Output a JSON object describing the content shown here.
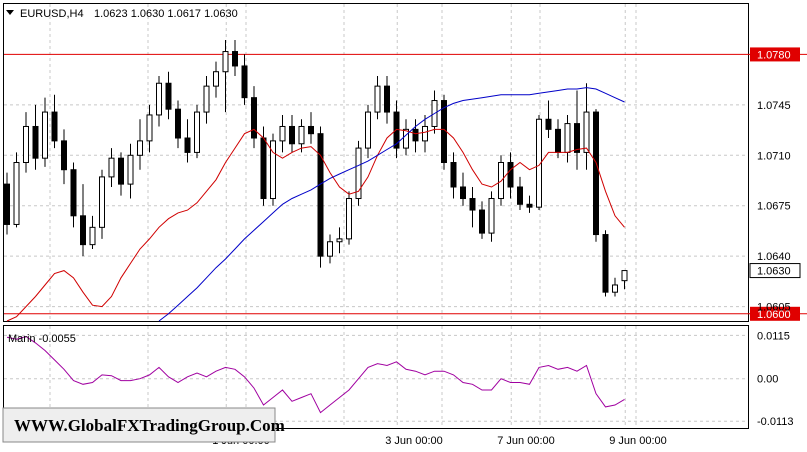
{
  "header": {
    "menu_arrow_icon": "triangle-down-icon",
    "symbol": "EURUSD,H4",
    "ohlc": "1.0623 1.0630 1.0617 1.0630"
  },
  "colors": {
    "up_candle": "#ffffff",
    "down_candle": "#000000",
    "grid": "#c8c8c8",
    "level_line": "#e00000",
    "ma_fast": "#d00000",
    "ma_slow": "#0000c8",
    "oscillator": "#a000a0"
  },
  "watermark": "WWW.GlobalFXTradingGroup.Com",
  "chart_data": [
    {
      "type": "candlestick",
      "symbol": "EURUSD",
      "timeframe": "H4",
      "grid": true,
      "ylim": [
        1.0595,
        1.0815
      ],
      "y_ticks": [
        "1.0745",
        "1.0710",
        "1.0675",
        "1.0640",
        "1.0605"
      ],
      "x_ticks": [
        "1 Jun 00:00",
        "3 Jun 00:00",
        "7 Jun 00:00",
        "9 Jun 00:00"
      ],
      "levels": [
        {
          "value": 1.078,
          "label": "1.0780"
        },
        {
          "value": 1.06,
          "label": "1.0600"
        }
      ],
      "current_price": "1.0630",
      "candles": [
        [
          1.069,
          1.0698,
          1.0655,
          1.0662
        ],
        [
          1.0662,
          1.0712,
          1.066,
          1.0705
        ],
        [
          1.0705,
          1.074,
          1.0698,
          1.073
        ],
        [
          1.073,
          1.0745,
          1.07,
          1.0708
        ],
        [
          1.0708,
          1.075,
          1.0702,
          1.074
        ],
        [
          1.074,
          1.0752,
          1.0715,
          1.072
        ],
        [
          1.072,
          1.0728,
          1.069,
          1.07
        ],
        [
          1.07,
          1.0705,
          1.066,
          1.0668
        ],
        [
          1.0668,
          1.069,
          1.064,
          1.0648
        ],
        [
          1.0648,
          1.0668,
          1.0645,
          1.066
        ],
        [
          1.066,
          1.07,
          1.0652,
          1.0695
        ],
        [
          1.0695,
          1.0715,
          1.0688,
          1.0708
        ],
        [
          1.0708,
          1.0712,
          1.0682,
          1.069
        ],
        [
          1.069,
          1.0718,
          1.068,
          1.071
        ],
        [
          1.071,
          1.0735,
          1.07,
          1.072
        ],
        [
          1.072,
          1.0745,
          1.0712,
          1.0738
        ],
        [
          1.0738,
          1.0765,
          1.073,
          1.076
        ],
        [
          1.076,
          1.0768,
          1.0735,
          1.0742
        ],
        [
          1.0742,
          1.0748,
          1.0715,
          1.0722
        ],
        [
          1.0722,
          1.0735,
          1.0705,
          1.0712
        ],
        [
          1.0712,
          1.0745,
          1.0708,
          1.074
        ],
        [
          1.074,
          1.0765,
          1.0732,
          1.0758
        ],
        [
          1.0758,
          1.0775,
          1.075,
          1.0768
        ],
        [
          1.0768,
          1.079,
          1.074,
          1.0782
        ],
        [
          1.0782,
          1.079,
          1.0765,
          1.0772
        ],
        [
          1.0772,
          1.078,
          1.0745,
          1.075
        ],
        [
          1.075,
          1.0758,
          1.0715,
          1.0722
        ],
        [
          1.0722,
          1.073,
          1.0675,
          1.068
        ],
        [
          1.068,
          1.0725,
          1.0675,
          1.072
        ],
        [
          1.072,
          1.0738,
          1.0712,
          1.073
        ],
        [
          1.073,
          1.0738,
          1.0712,
          1.0718
        ],
        [
          1.0718,
          1.0735,
          1.0712,
          1.073
        ],
        [
          1.073,
          1.074,
          1.0718,
          1.0725
        ],
        [
          1.0725,
          1.073,
          1.0632,
          1.064
        ],
        [
          1.064,
          1.0655,
          1.0635,
          1.065
        ],
        [
          1.065,
          1.066,
          1.0642,
          1.0652
        ],
        [
          1.0652,
          1.0685,
          1.0648,
          1.068
        ],
        [
          1.068,
          1.072,
          1.0675,
          1.0715
        ],
        [
          1.0715,
          1.0745,
          1.0708,
          1.074
        ],
        [
          1.074,
          1.0765,
          1.0735,
          1.0758
        ],
        [
          1.0758,
          1.0765,
          1.0732,
          1.074
        ],
        [
          1.074,
          1.0748,
          1.0708,
          1.0715
        ],
        [
          1.0715,
          1.0735,
          1.071,
          1.0728
        ],
        [
          1.0728,
          1.0735,
          1.0712,
          1.072
        ],
        [
          1.072,
          1.0738,
          1.0712,
          1.073
        ],
        [
          1.073,
          1.0755,
          1.0725,
          1.0748
        ],
        [
          1.0748,
          1.0752,
          1.07,
          1.0705
        ],
        [
          1.0705,
          1.0712,
          1.068,
          1.0688
        ],
        [
          1.0688,
          1.0698,
          1.0675,
          1.068
        ],
        [
          1.068,
          1.0688,
          1.066,
          1.0672
        ],
        [
          1.0672,
          1.0678,
          1.0652,
          1.0656
        ],
        [
          1.0656,
          1.0685,
          1.065,
          1.068
        ],
        [
          1.068,
          1.071,
          1.0675,
          1.0705
        ],
        [
          1.0705,
          1.0712,
          1.068,
          1.0688
        ],
        [
          1.0688,
          1.0695,
          1.0672,
          1.0676
        ],
        [
          1.0676,
          1.0682,
          1.067,
          1.0674
        ],
        [
          1.0674,
          1.0738,
          1.0672,
          1.0735
        ],
        [
          1.0735,
          1.0748,
          1.0722,
          1.0728
        ],
        [
          1.0728,
          1.0735,
          1.0708,
          1.0712
        ],
        [
          1.0712,
          1.0738,
          1.0705,
          1.0732
        ],
        [
          1.0732,
          1.0755,
          1.07,
          1.0712
        ],
        [
          1.0712,
          1.076,
          1.07,
          1.074
        ],
        [
          1.074,
          1.0742,
          1.065,
          1.0655
        ],
        [
          1.0655,
          1.0658,
          1.0612,
          1.0615
        ],
        [
          1.0615,
          1.0625,
          1.0612,
          1.062
        ],
        [
          1.0623,
          1.063,
          1.0617,
          1.063
        ]
      ],
      "series": [
        {
          "type": "line",
          "values": [
            1.0595,
            1.0598,
            1.0605,
            1.0612,
            1.062,
            1.0628,
            1.063,
            1.0625,
            1.0615,
            1.0606,
            1.0605,
            1.0612,
            1.0625,
            1.0635,
            1.0645,
            1.0652,
            1.066,
            1.0666,
            1.067,
            1.0672,
            1.0677,
            1.0685,
            1.0693,
            1.0705,
            1.0715,
            1.0725,
            1.0728,
            1.0722,
            1.0712,
            1.0708,
            1.0712,
            1.0715,
            1.0716,
            1.071,
            1.0698,
            1.0688,
            1.0683,
            1.0685,
            1.0695,
            1.071,
            1.0722,
            1.0728,
            1.0727,
            1.0725,
            1.0726,
            1.0728,
            1.0728,
            1.0722,
            1.0712,
            1.07,
            1.069,
            1.0688,
            1.0692,
            1.07,
            1.0705,
            1.07,
            1.0703,
            1.0712,
            1.0712,
            1.0712,
            1.0714,
            1.0715,
            1.0705,
            1.0685,
            1.0668,
            1.066
          ]
        },
        {
          "type": "line",
          "values": [
            null,
            null,
            null,
            null,
            null,
            null,
            null,
            null,
            null,
            null,
            null,
            null,
            null,
            null,
            null,
            null,
            1.0595,
            1.06,
            1.0606,
            1.0612,
            1.0618,
            1.0625,
            1.0632,
            1.0638,
            1.0645,
            1.0652,
            1.0658,
            1.0664,
            1.067,
            1.0676,
            1.068,
            1.0683,
            1.0686,
            1.069,
            1.0694,
            1.0697,
            1.07,
            1.0703,
            1.0706,
            1.071,
            1.0714,
            1.0718,
            1.0724,
            1.073,
            1.0735,
            1.0739,
            1.0743,
            1.0746,
            1.0748,
            1.0749,
            1.075,
            1.0751,
            1.0752,
            1.0752,
            1.0752,
            1.0752,
            1.0753,
            1.0754,
            1.0755,
            1.0756,
            1.0756,
            1.0757,
            1.0756,
            1.0753,
            1.075,
            1.0747
          ]
        }
      ]
    },
    {
      "type": "line",
      "title": "Marin -0.0055",
      "grid": true,
      "ylim": [
        -0.0131,
        0.014
      ],
      "y_ticks": [
        "0.0115",
        "0.00",
        "-0.0113"
      ],
      "series": [
        {
          "type": "line",
          "values": [
            0.011,
            0.0105,
            0.0112,
            0.0095,
            0.0075,
            0.005,
            0.0025,
            -0.0005,
            -0.0015,
            -0.001,
            0.001,
            0.0008,
            -0.0005,
            -0.0005,
            0.0,
            0.001,
            0.003,
            0.0005,
            -0.001,
            0.0005,
            0.0015,
            0.0005,
            0.002,
            0.003,
            0.0025,
            0.0005,
            -0.0025,
            -0.007,
            -0.005,
            -0.003,
            -0.006,
            -0.005,
            -0.004,
            -0.009,
            -0.007,
            -0.005,
            -0.003,
            0.0,
            0.003,
            0.004,
            0.0035,
            0.0045,
            0.0025,
            0.002,
            0.001,
            0.002,
            0.002,
            0.001,
            -0.001,
            -0.0015,
            -0.003,
            -0.003,
            0.0,
            -0.001,
            -0.001,
            -0.0015,
            0.003,
            0.0035,
            0.0025,
            0.003,
            0.002,
            0.0035,
            -0.004,
            -0.0075,
            -0.007,
            -0.0055
          ]
        }
      ]
    }
  ]
}
